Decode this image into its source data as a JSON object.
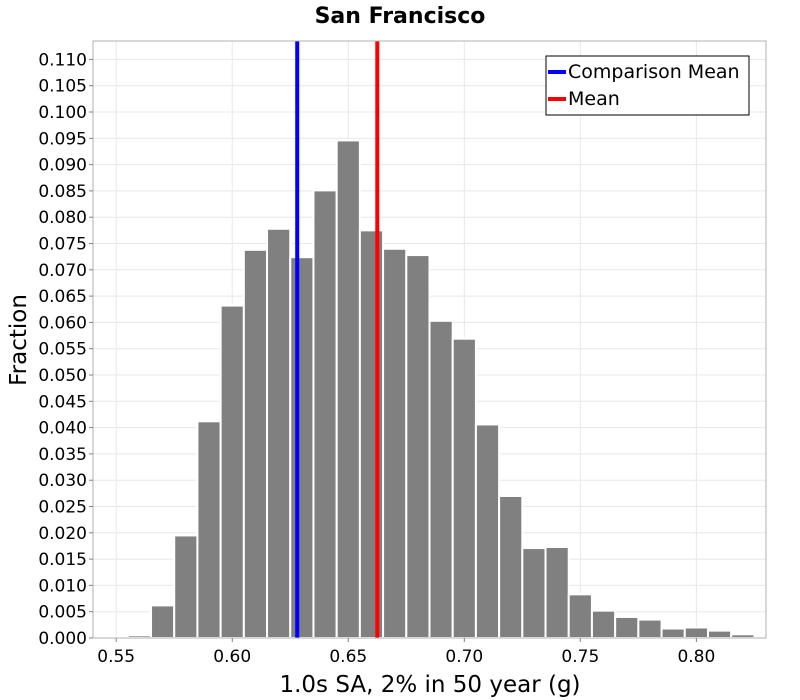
{
  "chart_data": {
    "type": "bar",
    "title": "San Francisco",
    "xlabel": "1.0s SA, 2% in 50 year (g)",
    "ylabel": "Fraction",
    "xlim": [
      0.54,
      0.83
    ],
    "ylim": [
      0,
      0.1135
    ],
    "grid": true,
    "bin_width": 0.01,
    "bins": [
      {
        "x": 0.55,
        "value": 0.0002
      },
      {
        "x": 0.56,
        "value": 0.0005
      },
      {
        "x": 0.57,
        "value": 0.0062
      },
      {
        "x": 0.58,
        "value": 0.0195
      },
      {
        "x": 0.59,
        "value": 0.0412
      },
      {
        "x": 0.6,
        "value": 0.0632
      },
      {
        "x": 0.61,
        "value": 0.0738
      },
      {
        "x": 0.62,
        "value": 0.0778
      },
      {
        "x": 0.63,
        "value": 0.0724
      },
      {
        "x": 0.64,
        "value": 0.0851
      },
      {
        "x": 0.65,
        "value": 0.0946
      },
      {
        "x": 0.66,
        "value": 0.0775
      },
      {
        "x": 0.67,
        "value": 0.074
      },
      {
        "x": 0.68,
        "value": 0.0728
      },
      {
        "x": 0.69,
        "value": 0.0603
      },
      {
        "x": 0.7,
        "value": 0.0569
      },
      {
        "x": 0.71,
        "value": 0.0406
      },
      {
        "x": 0.72,
        "value": 0.027
      },
      {
        "x": 0.73,
        "value": 0.0171
      },
      {
        "x": 0.74,
        "value": 0.0173
      },
      {
        "x": 0.75,
        "value": 0.0083
      },
      {
        "x": 0.76,
        "value": 0.0052
      },
      {
        "x": 0.77,
        "value": 0.004
      },
      {
        "x": 0.78,
        "value": 0.0035
      },
      {
        "x": 0.79,
        "value": 0.0018
      },
      {
        "x": 0.8,
        "value": 0.002
      },
      {
        "x": 0.81,
        "value": 0.0014
      },
      {
        "x": 0.82,
        "value": 0.0007
      }
    ],
    "xticks": [
      "0.55",
      "0.60",
      "0.65",
      "0.70",
      "0.75",
      "0.80"
    ],
    "yticks": [
      "0.000",
      "0.005",
      "0.010",
      "0.015",
      "0.020",
      "0.025",
      "0.030",
      "0.035",
      "0.040",
      "0.045",
      "0.050",
      "0.055",
      "0.060",
      "0.065",
      "0.070",
      "0.075",
      "0.080",
      "0.085",
      "0.090",
      "0.095",
      "0.100",
      "0.105",
      "0.110"
    ],
    "vlines": [
      {
        "name": "Comparison Mean",
        "x": 0.628,
        "color": "#0000ff"
      },
      {
        "name": "Mean",
        "x": 0.6625,
        "color": "#ff0000"
      }
    ],
    "legend": {
      "position": "top-right",
      "entries": [
        {
          "label": "Comparison Mean",
          "color": "#0000ff"
        },
        {
          "label": "Mean",
          "color": "#ff0000"
        }
      ]
    },
    "colors": {
      "bar": "#808080",
      "bar_edge": "#ffffff",
      "grid": "#e8e8e8",
      "frame": "#b0b0b0"
    }
  }
}
